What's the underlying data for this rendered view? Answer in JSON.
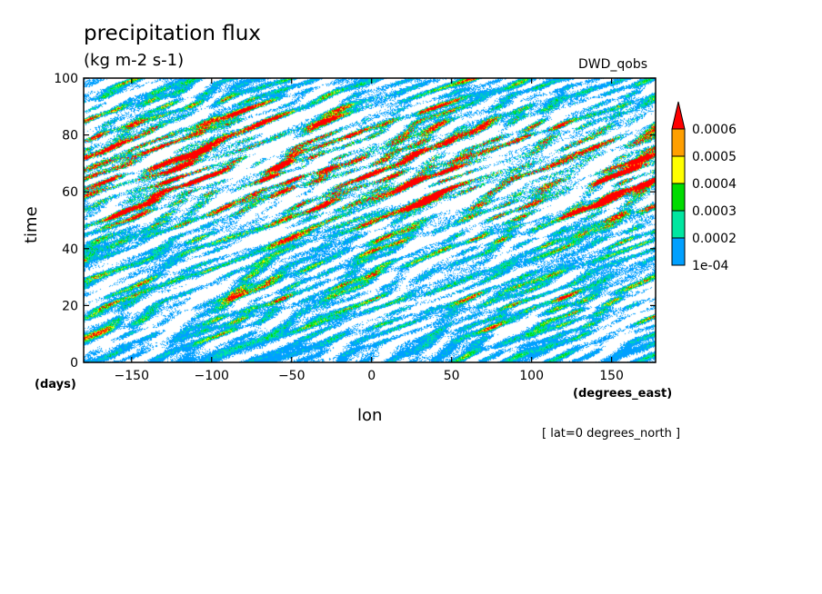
{
  "header": {
    "title": "precipitation flux",
    "units": "(kg m-2 s-1)",
    "dataset": "DWD_qobs"
  },
  "footnote": "[ lat=0 degrees_north ]",
  "chart_data": {
    "type": "heatmap",
    "title": "precipitation flux",
    "subtitle": "(kg m-2 s-1)",
    "xlabel": "lon",
    "ylabel": "time",
    "x_unit": "(degrees_east)",
    "y_unit": "(days)",
    "xlim": [
      -180,
      177.5
    ],
    "ylim": [
      0,
      100
    ],
    "x_ticks": [
      -150,
      -100,
      -50,
      0,
      50,
      100,
      150
    ],
    "x_tick_labels": [
      "−150",
      "−100",
      "−50",
      "0",
      "50",
      "100",
      "150"
    ],
    "y_ticks": [
      0,
      20,
      40,
      60,
      80,
      100
    ],
    "y_tick_labels": [
      "0",
      "20",
      "40",
      "60",
      "80",
      "100"
    ],
    "colorbar": {
      "levels": [
        0.0001,
        0.0002,
        0.0003,
        0.0004,
        0.0005,
        0.0006
      ],
      "labels": [
        "1e-04",
        "0.0002",
        "0.0003",
        "0.0004",
        "0.0005",
        "0.0006"
      ],
      "colors": [
        "#ffffff",
        "#00a0ff",
        "#00e6a0",
        "#00dc00",
        "#ffff00",
        "#ff9f00",
        "#ff0000"
      ],
      "extend": "max"
    },
    "pattern": "eastward-tilted precipitation streaks; heaviest (red) bands between time 45 and 95"
  }
}
